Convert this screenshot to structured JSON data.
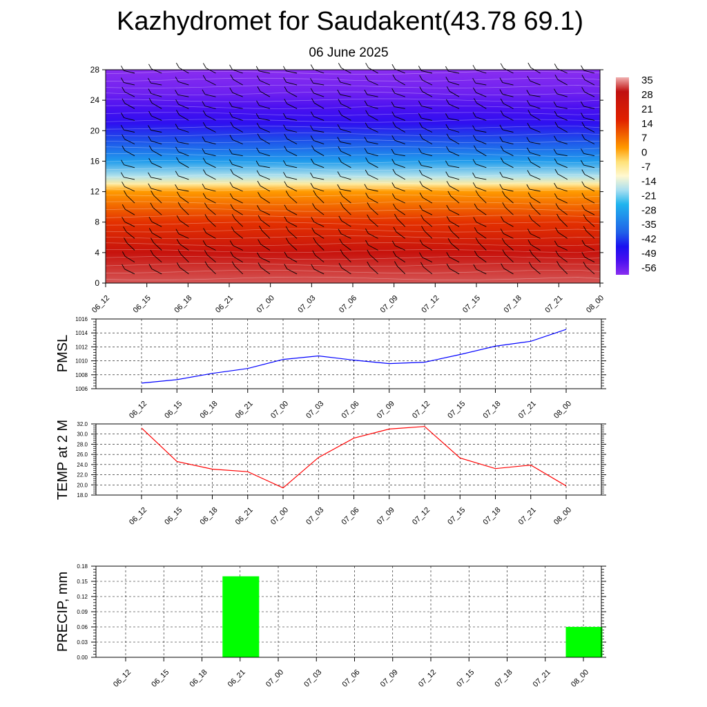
{
  "header": {
    "title": "Kazhydromet for Saudakent(43.78 69.1)",
    "date": "06 June 2025"
  },
  "time_labels": [
    "06_12",
    "06_15",
    "06_18",
    "06_21",
    "07_00",
    "07_03",
    "07_06",
    "07_09",
    "07_12",
    "07_15",
    "07_18",
    "07_21",
    "08_00"
  ],
  "colors": {
    "pressure_line": "#0000ff",
    "temperature_line": "#ff0000",
    "precip_bar": "#00ff00"
  },
  "chart_data": [
    {
      "type": "heatmap",
      "title": "",
      "xlabel": "",
      "ylabel": "",
      "ylim": [
        0,
        28
      ],
      "yticks": [
        0,
        4,
        8,
        12,
        16,
        20,
        24,
        28
      ],
      "x": [
        "06_12",
        "06_15",
        "06_18",
        "06_21",
        "07_00",
        "07_03",
        "07_06",
        "07_09",
        "07_12",
        "07_15",
        "07_18",
        "07_21",
        "08_00"
      ],
      "colorbar": {
        "labels": [
          35,
          28,
          21,
          14,
          7,
          0,
          -7,
          -14,
          -21,
          -28,
          -35,
          -42,
          -49,
          -56
        ],
        "stops": [
          {
            "value": 35,
            "color": "#f0b0b0"
          },
          {
            "value": 28,
            "color": "#c01010"
          },
          {
            "value": 14,
            "color": "#e02000"
          },
          {
            "value": 0,
            "color": "#ff9a00"
          },
          {
            "value": -7,
            "color": "#ffe27a"
          },
          {
            "value": -14,
            "color": "#fff8d0"
          },
          {
            "value": -21,
            "color": "#a8dff0"
          },
          {
            "value": -28,
            "color": "#20b4ee"
          },
          {
            "value": -42,
            "color": "#2060e8"
          },
          {
            "value": -49,
            "color": "#1a10f0"
          },
          {
            "value": -56,
            "color": "#4a10f0"
          },
          {
            "value": -63,
            "color": "#8a2ef0"
          }
        ]
      },
      "profile": [
        {
          "level": 0,
          "value": 31
        },
        {
          "level": 4,
          "value": 25
        },
        {
          "level": 8,
          "value": 12
        },
        {
          "level": 12,
          "value": 0
        },
        {
          "level": 13,
          "value": -10
        },
        {
          "level": 14,
          "value": -20
        },
        {
          "level": 16,
          "value": -32
        },
        {
          "level": 19,
          "value": -44
        },
        {
          "level": 21,
          "value": -52
        },
        {
          "level": 23,
          "value": -56
        },
        {
          "level": 25,
          "value": -60
        },
        {
          "level": 28,
          "value": -63
        }
      ],
      "grid": false,
      "wind_barbs": true
    },
    {
      "type": "line",
      "ylabel": "PMSL",
      "ylim": [
        1006,
        1016
      ],
      "yticks": [
        1006,
        1008,
        1010,
        1012,
        1014,
        1016
      ],
      "x": [
        "06_12",
        "06_15",
        "06_18",
        "06_21",
        "07_00",
        "07_03",
        "07_06",
        "07_09",
        "07_12",
        "07_15",
        "07_18",
        "07_21",
        "08_00"
      ],
      "series": [
        {
          "values": [
            1006.8,
            1007.3,
            1008.2,
            1008.9,
            1010.2,
            1010.7,
            1010.1,
            1009.6,
            1009.8,
            1010.9,
            1012.1,
            1012.8,
            1014.5
          ]
        }
      ],
      "grid": true
    },
    {
      "type": "line",
      "ylabel": "TEMP at 2 M",
      "ylim": [
        18,
        32
      ],
      "yticks": [
        "18.0",
        "20.0",
        "22.0",
        "24.0",
        "26.0",
        "28.0",
        "30.0",
        "32.0"
      ],
      "x": [
        "06_12",
        "06_15",
        "06_18",
        "06_21",
        "07_00",
        "07_03",
        "07_06",
        "07_09",
        "07_12",
        "07_15",
        "07_18",
        "07_21",
        "08_00"
      ],
      "series": [
        {
          "values": [
            31.2,
            24.6,
            23.1,
            22.6,
            19.4,
            25.4,
            29.2,
            31.0,
            31.5,
            25.3,
            23.2,
            23.9,
            19.8
          ]
        }
      ],
      "grid": true
    },
    {
      "type": "bar",
      "ylabel": "PRECIP, mm",
      "ylim": [
        0,
        0.18
      ],
      "yticks": [
        "0.00",
        "0.03",
        "0.06",
        "0.09",
        "0.12",
        "0.15",
        "0.18"
      ],
      "categories": [
        "06_12",
        "06_15",
        "06_18",
        "06_21",
        "07_00",
        "07_03",
        "07_06",
        "07_09",
        "07_12",
        "07_15",
        "07_18",
        "07_21",
        "08_00"
      ],
      "values": [
        0,
        0,
        0,
        0.16,
        0,
        0,
        0,
        0,
        0,
        0,
        0,
        0,
        0.06
      ],
      "grid": true
    }
  ]
}
